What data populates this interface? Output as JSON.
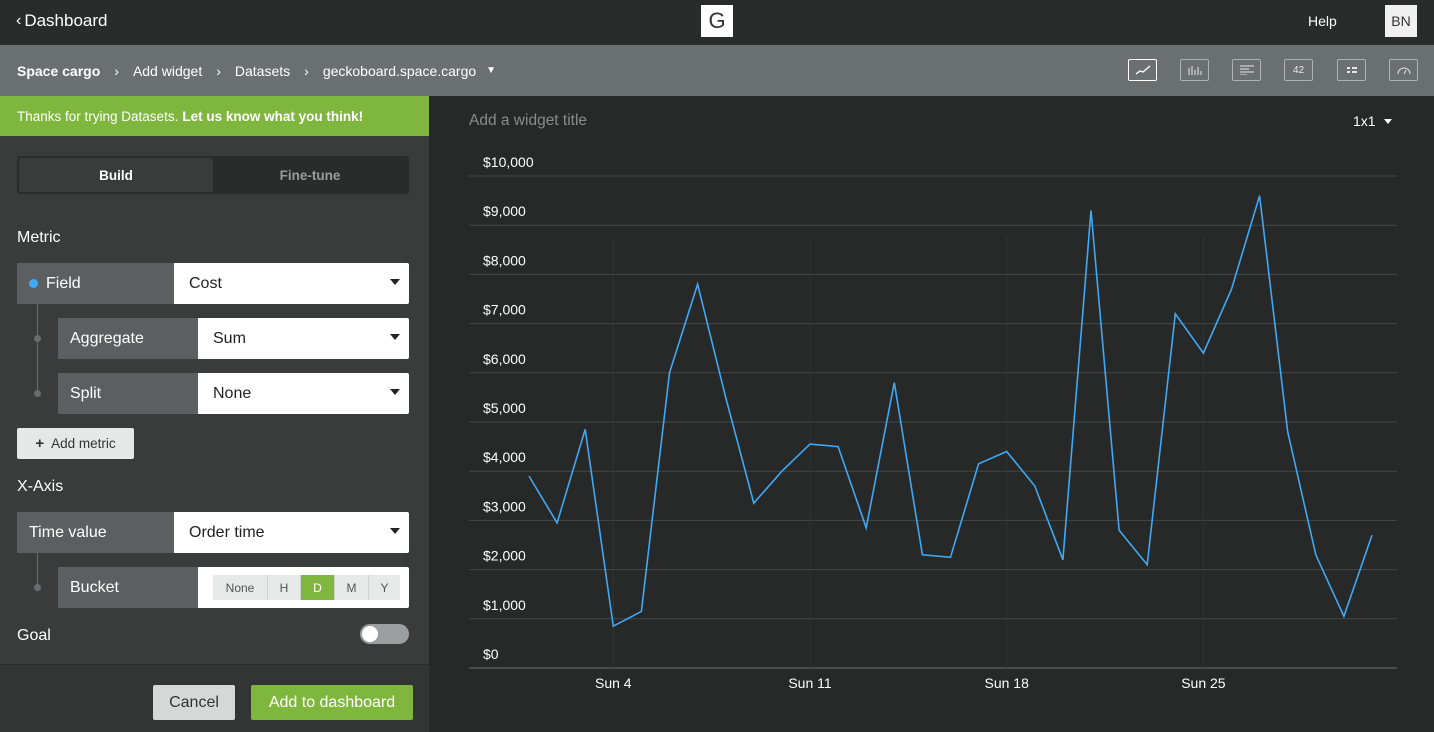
{
  "topbar": {
    "back_label": "Dashboard",
    "logo_letter": "G",
    "help_label": "Help",
    "avatar_initials": "BN"
  },
  "breadcrumb": {
    "items": [
      "Space cargo",
      "Add widget",
      "Datasets",
      "geckoboard.space.cargo"
    ]
  },
  "viz_types": [
    {
      "name": "line-chart-icon",
      "active": true
    },
    {
      "name": "bar-chart-icon",
      "active": false
    },
    {
      "name": "text-widget-icon",
      "active": false
    },
    {
      "name": "number-widget-icon",
      "label": "42",
      "active": false
    },
    {
      "name": "leaderboard-icon",
      "active": false
    },
    {
      "name": "gauge-icon",
      "active": false
    }
  ],
  "banner": {
    "text": "Thanks for trying Datasets.",
    "link": "Let us know what you think!"
  },
  "tabs": {
    "build": "Build",
    "finetune": "Fine-tune"
  },
  "metric": {
    "heading": "Metric",
    "field_label": "Field",
    "field_value": "Cost",
    "aggregate_label": "Aggregate",
    "aggregate_value": "Sum",
    "split_label": "Split",
    "split_value": "None",
    "add_metric": "Add metric"
  },
  "xaxis": {
    "heading": "X-Axis",
    "time_label": "Time value",
    "time_value": "Order time",
    "bucket_label": "Bucket",
    "bucket_options": [
      "None",
      "H",
      "D",
      "M",
      "Y"
    ],
    "bucket_selected": "D"
  },
  "goal": {
    "label": "Goal",
    "enabled": false
  },
  "footer": {
    "cancel": "Cancel",
    "add": "Add to dashboard"
  },
  "canvas": {
    "title_placeholder": "Add a widget title",
    "size": "1x1"
  },
  "colors": {
    "accent_green": "#7fb73e",
    "series_blue": "#3fa9f5"
  },
  "chart_data": {
    "type": "line",
    "title": "",
    "xlabel": "",
    "ylabel": "",
    "ylim": [
      0,
      10000
    ],
    "y_ticks": [
      "$0",
      "$1,000",
      "$2,000",
      "$3,000",
      "$4,000",
      "$5,000",
      "$6,000",
      "$7,000",
      "$8,000",
      "$9,000",
      "$10,000"
    ],
    "x_ticks": [
      {
        "label": "Sun 4",
        "day": 4
      },
      {
        "label": "Sun 11",
        "day": 11
      },
      {
        "label": "Sun 18",
        "day": 18
      },
      {
        "label": "Sun 25",
        "day": 25
      }
    ],
    "grid": true,
    "series": [
      {
        "days": [
          1,
          2,
          3,
          4,
          5,
          6,
          7,
          8,
          9,
          10,
          11,
          12,
          13,
          14,
          15,
          16,
          17,
          18,
          19,
          20,
          21,
          22,
          23,
          24,
          25,
          26,
          27,
          28,
          29,
          30,
          31
        ],
        "values": [
          3900,
          2950,
          4850,
          850,
          1150,
          6000,
          7800,
          5500,
          3350,
          4000,
          4550,
          4500,
          2850,
          5800,
          2300,
          2250,
          4150,
          4400,
          3700,
          2200,
          9300,
          2800,
          2100,
          7200,
          6400,
          7700,
          9600,
          4800,
          2300,
          1050,
          2700
        ]
      }
    ]
  }
}
